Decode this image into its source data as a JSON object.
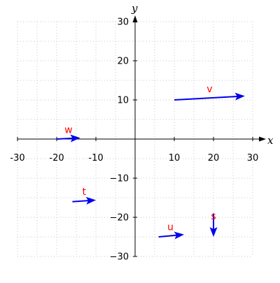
{
  "chart_data": {
    "type": "vector-plot",
    "title": "",
    "xlabel": "x",
    "ylabel": "y",
    "xlim": [
      -30,
      30
    ],
    "ylim": [
      -30,
      30
    ],
    "x_ticks": [
      -30,
      -20,
      -10,
      10,
      20,
      30
    ],
    "y_ticks": [
      -30,
      -20,
      -10,
      10,
      20,
      30
    ],
    "x_tick_labels": [
      "-30",
      "-20",
      "-10",
      "10",
      "20",
      "30"
    ],
    "y_tick_labels": [
      "−30",
      "−20",
      "−10",
      "10",
      "20",
      "30"
    ],
    "grid": true,
    "grid_step": 5,
    "arrow_color": "#0000ee",
    "label_color": "#ff0000",
    "vectors": [
      {
        "name": "v",
        "x0": 10,
        "y0": 10,
        "x1": 28,
        "y1": 11,
        "label_at": [
          19,
          12
        ]
      },
      {
        "name": "w",
        "x0": -20,
        "y0": 0,
        "x1": -14,
        "y1": 0.3,
        "label_at": [
          -17,
          1.5
        ]
      },
      {
        "name": "t",
        "x0": -16,
        "y0": -16,
        "x1": -10,
        "y1": -15.6,
        "label_at": [
          -13,
          -14.3
        ]
      },
      {
        "name": "u",
        "x0": 6,
        "y0": -25,
        "x1": 12.5,
        "y1": -24.4,
        "label_at": [
          9,
          -23.3
        ]
      },
      {
        "name": "s",
        "x0": 20,
        "y0": -19,
        "x1": 20,
        "y1": -25,
        "label_at": [
          20,
          -20.5
        ]
      }
    ]
  }
}
